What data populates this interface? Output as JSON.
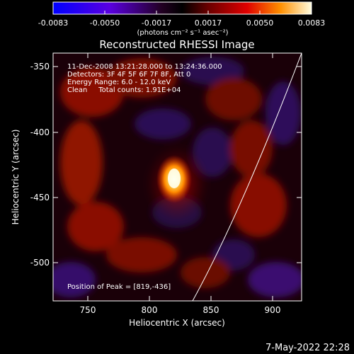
{
  "colorbar": {
    "tick_labels": [
      "-0.0083",
      "-0.0050",
      "-0.0017",
      "0.0017",
      "0.0050",
      "0.0083"
    ],
    "units_text": "(photons cm⁻² s⁻¹ asec⁻²)"
  },
  "title": "Reconstructed RHESSI Image",
  "annotations": [
    "11-Dec-2008 13:21:28.000 to 13:24:36.000",
    "Detectors: 3F 4F 5F 6F 7F 8F, Att 0",
    "Energy Range: 6.0 - 12.0 keV",
    "Clean     Total counts: 1.91E+04"
  ],
  "peak_text": "Position of Peak = [819,-436]",
  "x_axis": {
    "label": "Heliocentric X (arcsec)",
    "ticks": [
      "750",
      "800",
      "850",
      "900"
    ]
  },
  "y_axis": {
    "label": "Heliocentric Y (arcsec)",
    "ticks": [
      "-350",
      "-400",
      "-450",
      "-500"
    ]
  },
  "footer_date": "7-May-2022 22:28",
  "colors": {
    "background": "#000000",
    "text": "#ffffff"
  }
}
